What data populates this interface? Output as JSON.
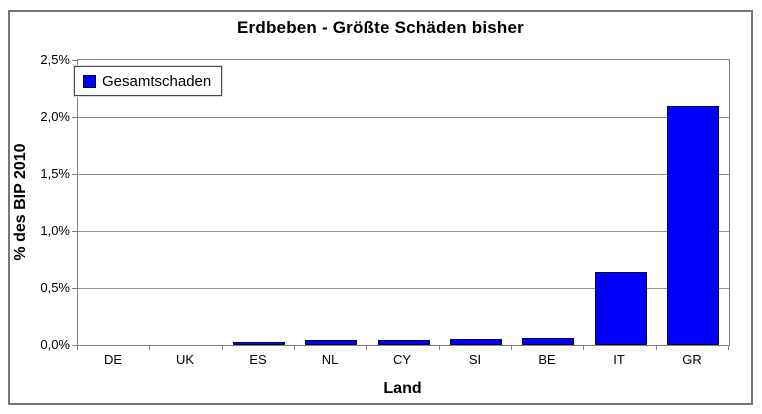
{
  "chart_data": {
    "type": "bar",
    "title": "Erdbeben - Größte Schäden bisher",
    "xlabel": "Land",
    "ylabel": "% des BIP 2010",
    "categories": [
      "DE",
      "UK",
      "ES",
      "NL",
      "CY",
      "SI",
      "BE",
      "IT",
      "GR"
    ],
    "series": [
      {
        "name": "Gesamtschaden",
        "values": [
          0.0,
          0.0,
          0.03,
          0.04,
          0.04,
          0.05,
          0.06,
          0.64,
          2.1
        ]
      }
    ],
    "ylim": [
      0,
      2.5
    ],
    "ytick_step": 0.5,
    "ytick_labels": [
      "0,0%",
      "0,5%",
      "1,0%",
      "1,5%",
      "2,0%",
      "2,5%"
    ],
    "grid": true,
    "legend_position": "top-left",
    "colors": {
      "bar_fill": "#0000ff",
      "bar_border": "#000033",
      "gridline": "#8c8c8c",
      "plot_border": "#7f7f7f",
      "frame_border": "#767676",
      "tick": "#7f7f7f",
      "text": "#000000"
    }
  }
}
